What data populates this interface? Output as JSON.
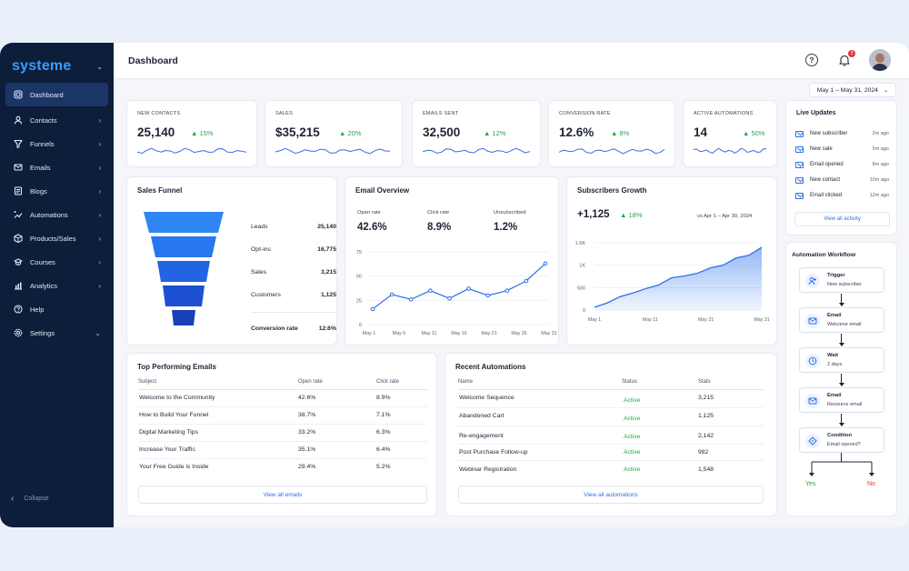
{
  "sidebar": {
    "logo": "systeme",
    "items": [
      {
        "label": "Dashboard",
        "icon": "dashboard-icon",
        "active": true
      },
      {
        "label": "Contacts",
        "icon": "user-icon"
      },
      {
        "label": "Funnels",
        "icon": "funnel-icon"
      },
      {
        "label": "Emails",
        "icon": "mail-icon"
      },
      {
        "label": "Blogs",
        "icon": "blog-icon"
      },
      {
        "label": "Automations",
        "icon": "automation-icon"
      },
      {
        "label": "Products/Sales",
        "icon": "box-icon"
      },
      {
        "label": "Courses",
        "icon": "course-icon"
      },
      {
        "label": "Analytics",
        "icon": "analytics-icon"
      },
      {
        "label": "Help",
        "icon": "help-icon"
      },
      {
        "label": "Settings",
        "icon": "settings-icon"
      }
    ],
    "collapse_label": "Collapse"
  },
  "header": {
    "title": "Dashboard",
    "notification_count": "3",
    "date_range": "May 1 – May 31, 2024"
  },
  "kpis": [
    {
      "label": "NEW CONTACTS",
      "value": "25,140",
      "delta": "15%"
    },
    {
      "label": "SALES",
      "value": "$35,215",
      "delta": "20%"
    },
    {
      "label": "EMAILS SENT",
      "value": "32,500",
      "delta": "12%"
    },
    {
      "label": "CONVERSION RATE",
      "value": "12.6%",
      "delta": "8%"
    },
    {
      "label": "ACTIVE AUTOMATIONS",
      "value": "14",
      "delta": "50%"
    }
  ],
  "funnel": {
    "title": "Sales Funnel",
    "rows": [
      {
        "label": "Leads",
        "value": "25,140"
      },
      {
        "label": "Opt-ins",
        "value": "16,775"
      },
      {
        "label": "Sales",
        "value": "3,215"
      },
      {
        "label": "Customers",
        "value": "1,125"
      }
    ],
    "conversion_label": "Conversion rate",
    "conversion_value": "12.6%"
  },
  "email_overview": {
    "title": "Email Overview",
    "stats": [
      {
        "label": "Open rate",
        "value": "42.6%"
      },
      {
        "label": "Click rate",
        "value": "8.9%"
      },
      {
        "label": "Unsubscribed",
        "value": "1.2%"
      }
    ],
    "chart_data": {
      "type": "line",
      "x": [
        "May 1",
        "May 6",
        "May 11",
        "May 16",
        "May 21",
        "May 26",
        "May 31"
      ],
      "points": [
        16,
        31,
        26,
        35,
        27,
        37,
        30,
        35,
        45,
        63
      ],
      "ylim": [
        0,
        75
      ],
      "yticks": [
        "75",
        "50",
        "25",
        "0"
      ]
    }
  },
  "subscribers": {
    "title": "Subscribers Growth",
    "value": "+1,125",
    "delta": "18%",
    "compare": "vs Apr 1 – Apr 30, 2024",
    "chart_data": {
      "type": "area",
      "x": [
        "May 1",
        "May 11",
        "May 21",
        "May 31"
      ],
      "points": [
        60,
        160,
        300,
        380,
        480,
        560,
        720,
        760,
        820,
        940,
        1000,
        1160,
        1220,
        1400
      ],
      "ylim": [
        0,
        1500
      ],
      "yticks": [
        "1.5K",
        "1K",
        "500",
        "0"
      ]
    }
  },
  "top_emails": {
    "title": "Top Performing Emails",
    "headers": [
      "Subject",
      "Open rate",
      "Click rate"
    ],
    "rows": [
      [
        "Welcome to the Community",
        "42.6%",
        "8.9%"
      ],
      [
        "How to Build Your Funnel",
        "38.7%",
        "7.1%"
      ],
      [
        "Digital Marketing Tips",
        "33.2%",
        "6.3%"
      ],
      [
        "Increase Your Traffic",
        "35.1%",
        "6.4%"
      ],
      [
        "Your Free Guide is Inside",
        "29.4%",
        "5.2%"
      ]
    ],
    "button": "View all emails"
  },
  "recent_automations": {
    "title": "Recent Automations",
    "headers": [
      "Name",
      "Status",
      "Stats"
    ],
    "rows": [
      [
        "Welcome Sequence",
        "Active",
        "3,215"
      ],
      [
        "Abandoned Cart",
        "Active",
        "1,125"
      ],
      [
        "Re-engagement",
        "Active",
        "2,142"
      ],
      [
        "Post Purchase Follow-up",
        "Active",
        "982"
      ],
      [
        "Webinar Registration",
        "Active",
        "1,548"
      ]
    ],
    "button": "View all automations"
  },
  "live_updates": {
    "title": "Live Updates",
    "items": [
      {
        "label": "New subscriber",
        "ago": "2m ago"
      },
      {
        "label": "New sale",
        "ago": "5m ago"
      },
      {
        "label": "Email opened",
        "ago": "8m ago"
      },
      {
        "label": "New contact",
        "ago": "10m ago"
      },
      {
        "label": "Email clicked",
        "ago": "12m ago"
      }
    ],
    "button": "View all activity"
  },
  "workflow": {
    "title": "Automation Workflow",
    "nodes": [
      {
        "t1": "Trigger",
        "t2": "New subscriber",
        "icon": "user-plus-icon"
      },
      {
        "t1": "Email",
        "t2": "Welcome email",
        "icon": "mail-icon"
      },
      {
        "t1": "Wait",
        "t2": "2 days",
        "icon": "clock-icon"
      },
      {
        "t1": "Email",
        "t2": "Resource email",
        "icon": "mail-icon"
      },
      {
        "t1": "Condition",
        "t2": "Email opened?",
        "icon": "diamond-icon"
      }
    ],
    "yes": "Yes",
    "no": "No"
  },
  "colors": {
    "accent": "#2f6fea",
    "sidebar": "#0d1e3a",
    "positive": "#26a74a"
  }
}
